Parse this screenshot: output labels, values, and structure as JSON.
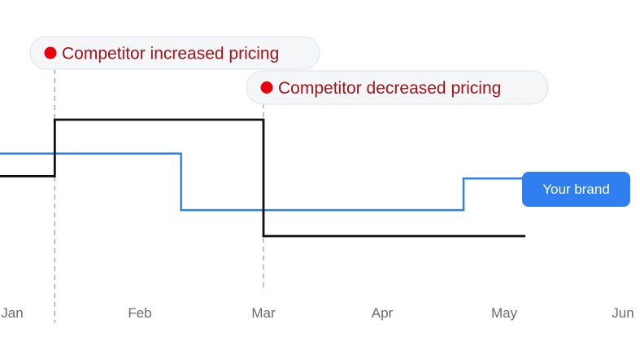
{
  "chart_data": {
    "type": "line",
    "step": true,
    "x_ticks": [
      "Jan",
      "Feb",
      "Mar",
      "Apr",
      "May",
      "Jun"
    ],
    "series": [
      {
        "name": "Your brand",
        "color": "#2f7ff0",
        "points": [
          {
            "x": "Jan",
            "y": 1.0
          },
          {
            "x": "Feb 10",
            "y": 0.5
          },
          {
            "x": "Apr 20",
            "y": 0.78
          },
          {
            "x": "May 05",
            "y": 0.78
          }
        ]
      },
      {
        "name": "",
        "color": "#111111",
        "points": [
          {
            "x": "Jan",
            "y": 0.8
          },
          {
            "x": "Jan 10",
            "y": 1.3
          },
          {
            "x": "Mar",
            "y": 0.27
          },
          {
            "x": "May 05",
            "y": 0.27
          }
        ]
      }
    ],
    "annotations": [
      {
        "x": "Jan 10",
        "label": "Competitor increased pricing",
        "marker_color": "#e8000f"
      },
      {
        "x": "Mar",
        "label": "Competitor decreased pricing",
        "marker_color": "#e8000f"
      }
    ],
    "series_label": "Your brand",
    "grid": false,
    "y_axis_visible": false
  }
}
